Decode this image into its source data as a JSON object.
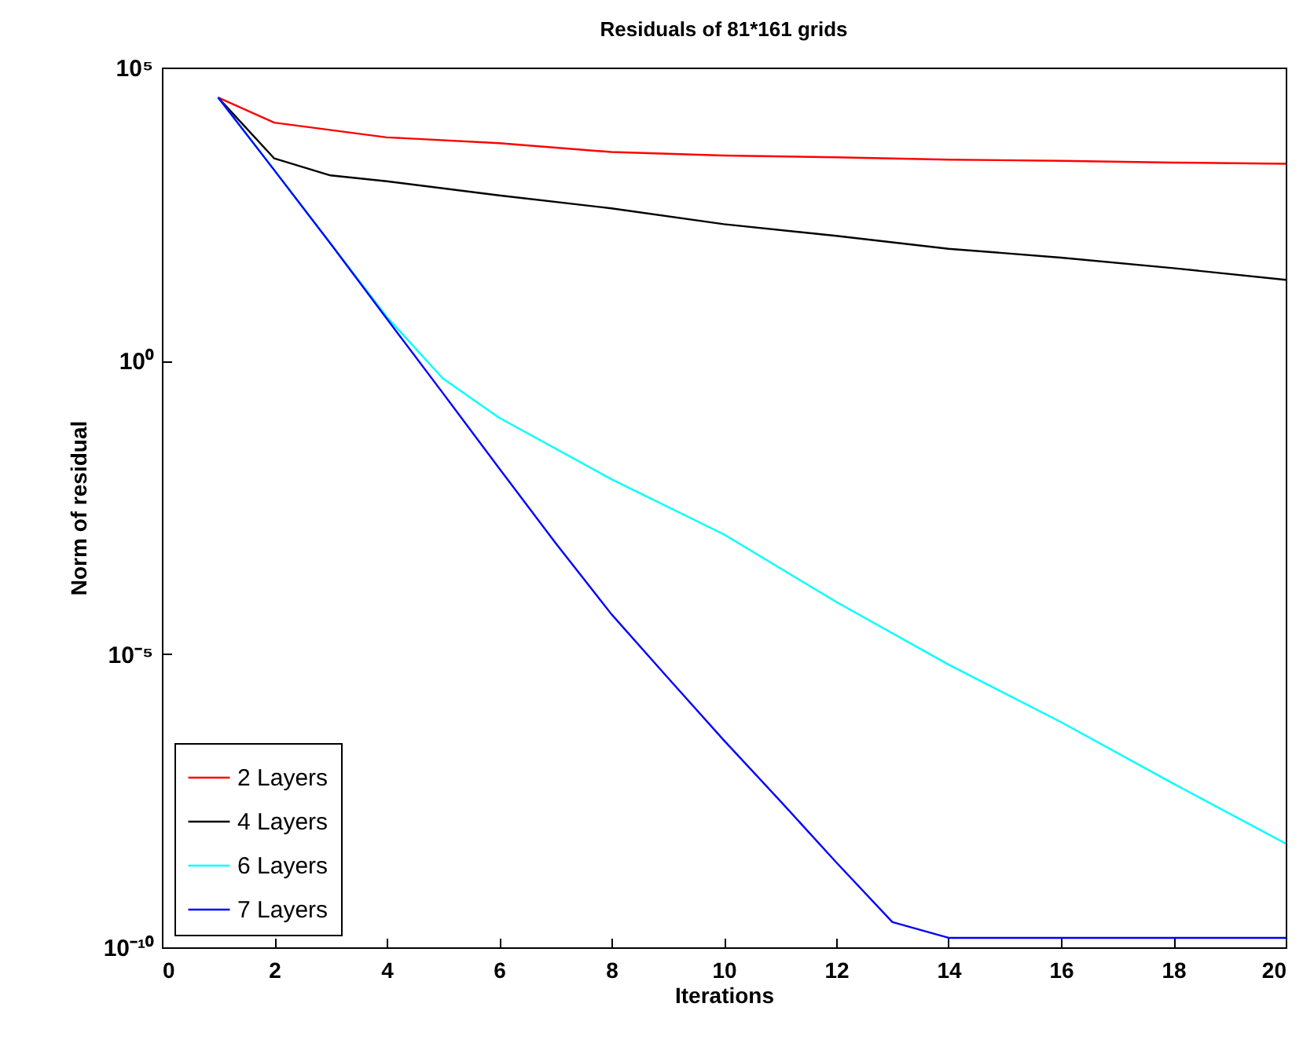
{
  "chart_data": {
    "type": "line",
    "title": "Residuals of 81*161 grids",
    "xlabel": "Iterations",
    "ylabel": "Norm of residual",
    "xlim": [
      0,
      20
    ],
    "xticks": [
      0,
      2,
      4,
      6,
      8,
      10,
      12,
      14,
      16,
      18,
      20
    ],
    "ylim": [
      1e-10,
      100000
    ],
    "yticks": [
      {
        "value": 1e-10,
        "label": "10⁻¹⁰"
      },
      {
        "value": 1e-05,
        "label": "10⁻⁵"
      },
      {
        "value": 1,
        "label": "10⁰"
      },
      {
        "value": 100000,
        "label": "10⁵"
      }
    ],
    "log": "y",
    "grid": false,
    "legend": "bottom left",
    "series": [
      {
        "name": "2 Layers",
        "color": "#ff0000",
        "x": [
          1,
          2,
          4,
          6,
          8,
          10,
          12,
          14,
          16,
          18,
          20
        ],
        "values": [
          30900,
          11500,
          6460,
          5130,
          3630,
          3160,
          2950,
          2690,
          2570,
          2400,
          2290
        ]
      },
      {
        "name": "4 Layers",
        "color": "#000000",
        "x": [
          1,
          2,
          3,
          4,
          6,
          8,
          10,
          12,
          14,
          16,
          18,
          20
        ],
        "values": [
          30900,
          2820,
          1450,
          1150,
          661,
          398,
          214,
          135,
          81.3,
          57.5,
          38.0,
          24.0
        ]
      },
      {
        "name": "6 Layers",
        "color": "#00ffff",
        "x": [
          1,
          2,
          3,
          4,
          5,
          6,
          8,
          10,
          12,
          14,
          16,
          18,
          20
        ],
        "values": [
          30900,
          1780,
          100,
          5.62,
          0.501,
          0.107,
          0.00955,
          0.0011,
          7.76e-05,
          6.61e-06,
          6.92e-07,
          6.17e-08,
          5.89e-09
        ]
      },
      {
        "name": "7 Layers",
        "color": "#0000ff",
        "x": [
          1,
          2,
          3,
          4,
          5,
          6,
          7,
          8,
          9,
          10,
          11,
          12,
          13,
          14,
          20
        ],
        "values": [
          30900,
          1780,
          100,
          5.25,
          0.282,
          0.0148,
          0.000794,
          4.79e-05,
          3.98e-06,
          3.39e-07,
          3.16e-08,
          2.82e-09,
          2.69e-10,
          1.45e-10,
          1.45e-10
        ]
      }
    ]
  }
}
